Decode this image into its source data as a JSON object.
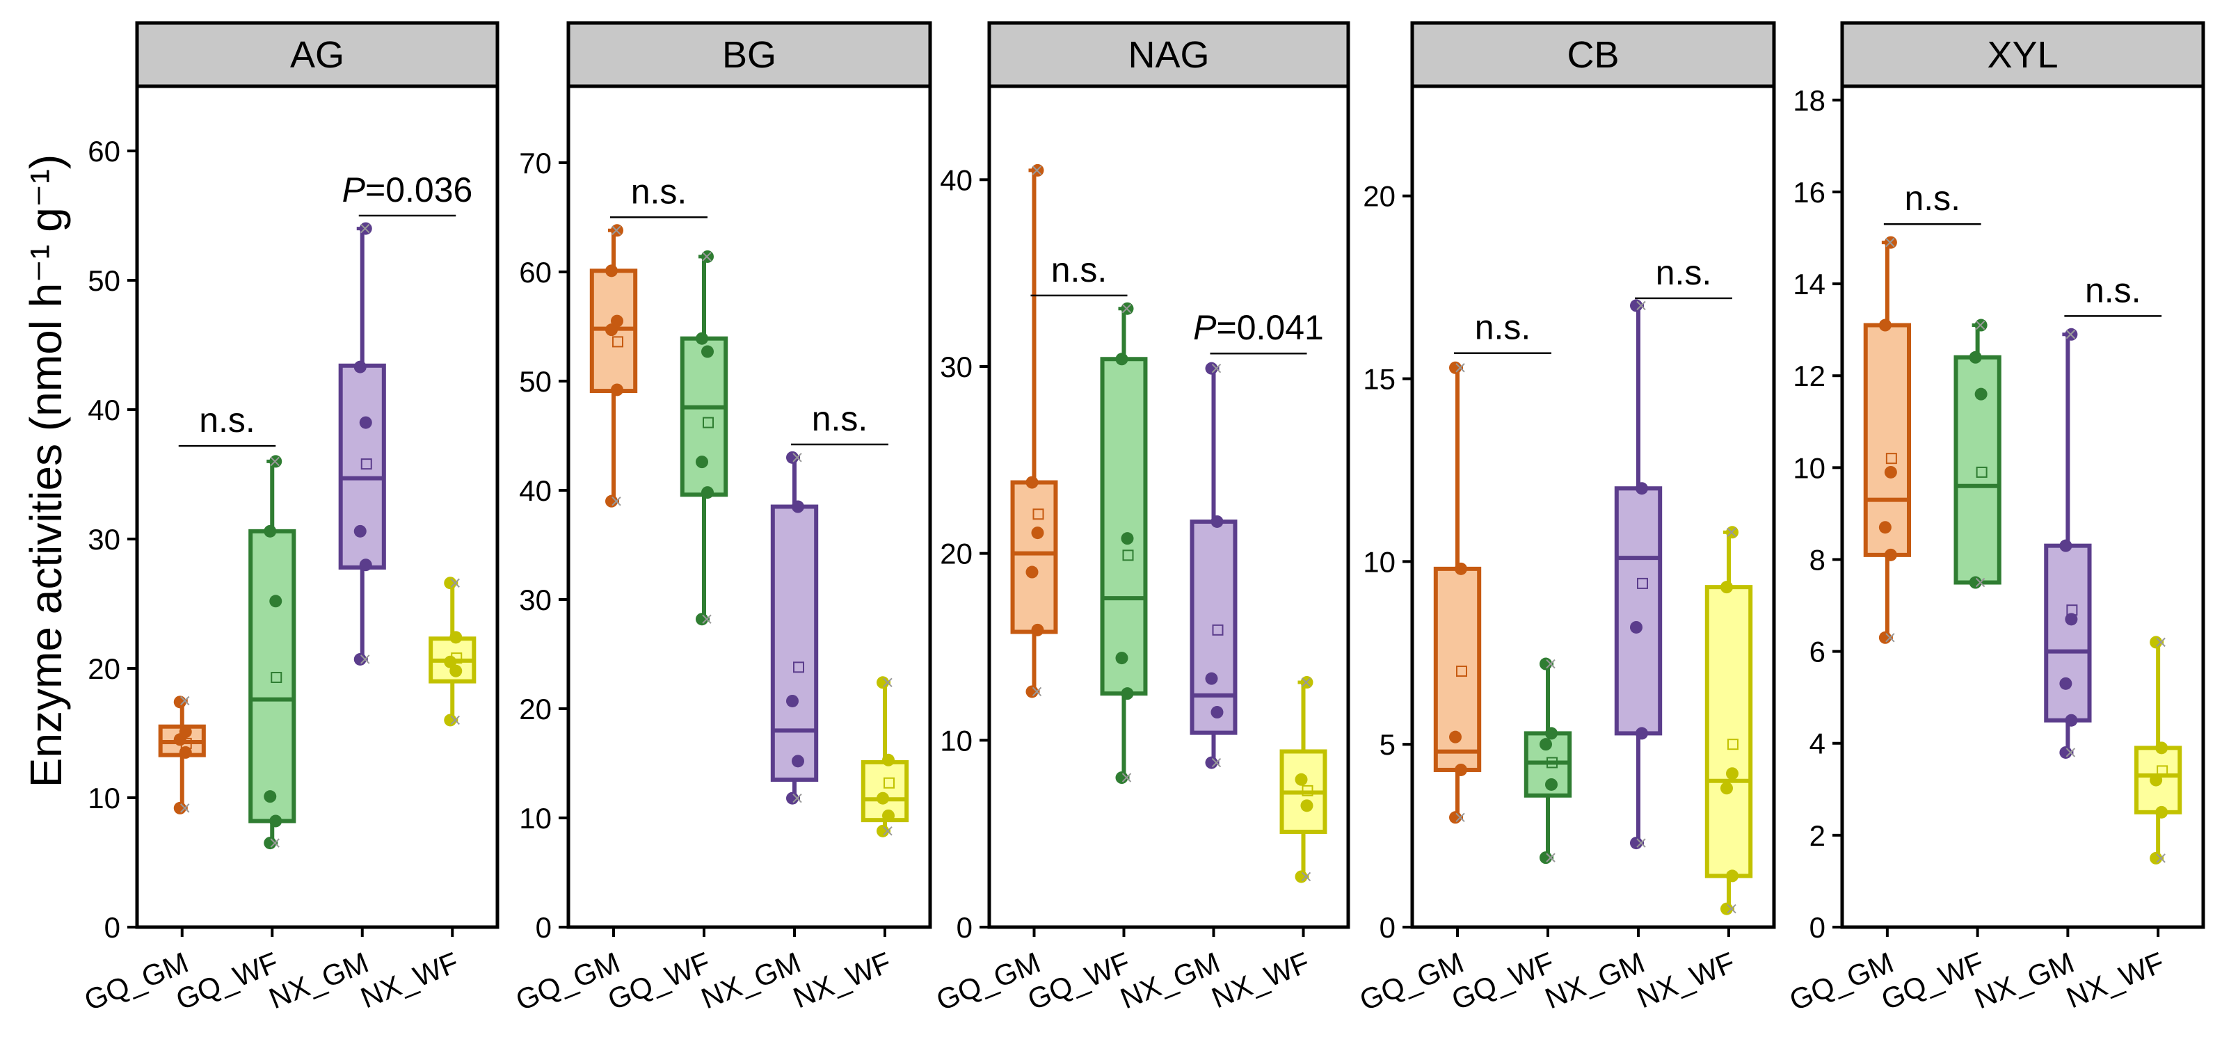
{
  "figure": {
    "ylabel": "Enzyme activities (nmol h⁻¹ g⁻¹)"
  },
  "colors": {
    "GQ_GM": {
      "stroke": "#c65a11",
      "fill": "#f8c69c"
    },
    "GQ_WF": {
      "stroke": "#2f7d32",
      "fill": "#9fdca0"
    },
    "NX_GM": {
      "stroke": "#5b3d8c",
      "fill": "#c4b2dc"
    },
    "NX_WF": {
      "stroke": "#c2c200",
      "fill": "#feff9c"
    }
  },
  "chart_data": [
    {
      "type": "box",
      "title": "AG",
      "categories": [
        "GQ_GM",
        "GQ_WF",
        "NX_GM",
        "NX_WF"
      ],
      "ylim": [
        0,
        65
      ],
      "yticks": [
        0,
        10,
        20,
        30,
        40,
        50,
        60
      ],
      "boxes": [
        {
          "min": 9.2,
          "q1": 13.3,
          "median": 14.3,
          "q3": 15.5,
          "max": 17.5,
          "mean": 14.2,
          "points": [
            9.2,
            13.5,
            14.5,
            15.1,
            17.4
          ]
        },
        {
          "min": 6.5,
          "q1": 8.2,
          "median": 17.6,
          "q3": 30.6,
          "max": 36.0,
          "mean": 19.3,
          "points": [
            6.5,
            8.2,
            10.1,
            25.2,
            30.6,
            36.0
          ]
        },
        {
          "min": 20.7,
          "q1": 27.8,
          "median": 34.7,
          "q3": 43.4,
          "max": 54.0,
          "mean": 35.8,
          "points": [
            20.7,
            28.0,
            30.6,
            39.0,
            43.3,
            54.0
          ]
        },
        {
          "min": 16.0,
          "q1": 19.0,
          "median": 20.6,
          "q3": 22.3,
          "max": 26.6,
          "mean": 20.8,
          "points": [
            16.0,
            19.8,
            20.5,
            22.4,
            26.6
          ]
        }
      ],
      "annotations": [
        {
          "text": "n.s.",
          "between": [
            "GQ_GM",
            "GQ_WF"
          ],
          "y": 37.2,
          "italic_p": false
        },
        {
          "text": "=0.036",
          "between": [
            "NX_GM",
            "NX_WF"
          ],
          "y": 55.0,
          "italic_p": true
        }
      ]
    },
    {
      "type": "box",
      "title": "BG",
      "categories": [
        "GQ_GM",
        "GQ_WF",
        "NX_GM",
        "NX_WF"
      ],
      "ylim": [
        0,
        77
      ],
      "yticks": [
        0,
        10,
        20,
        30,
        40,
        50,
        60,
        70
      ],
      "boxes": [
        {
          "min": 39.0,
          "q1": 49.1,
          "median": 54.8,
          "q3": 60.1,
          "max": 63.8,
          "mean": 53.6,
          "points": [
            39.0,
            49.2,
            54.7,
            55.5,
            60.1,
            63.8
          ]
        },
        {
          "min": 28.2,
          "q1": 39.6,
          "median": 47.6,
          "q3": 53.9,
          "max": 61.4,
          "mean": 46.2,
          "points": [
            28.2,
            39.8,
            42.6,
            52.7,
            53.9,
            61.4
          ]
        },
        {
          "min": 11.8,
          "q1": 13.5,
          "median": 18.0,
          "q3": 38.5,
          "max": 43.0,
          "mean": 23.8,
          "points": [
            11.8,
            15.2,
            20.7,
            38.5,
            43.0
          ]
        },
        {
          "min": 8.8,
          "q1": 9.8,
          "median": 11.7,
          "q3": 15.1,
          "max": 22.4,
          "mean": 13.2,
          "points": [
            8.8,
            10.2,
            11.8,
            15.3,
            22.4
          ]
        }
      ],
      "annotations": [
        {
          "text": "n.s.",
          "between": [
            "GQ_GM",
            "GQ_WF"
          ],
          "y": 65.0,
          "italic_p": false
        },
        {
          "text": "n.s.",
          "between": [
            "NX_GM",
            "NX_WF"
          ],
          "y": 44.2,
          "italic_p": false
        }
      ]
    },
    {
      "type": "box",
      "title": "NAG",
      "categories": [
        "GQ_GM",
        "GQ_WF",
        "NX_GM",
        "NX_WF"
      ],
      "ylim": [
        0,
        45
      ],
      "yticks": [
        0,
        10,
        20,
        30,
        40
      ],
      "boxes": [
        {
          "min": 12.6,
          "q1": 15.8,
          "median": 20.0,
          "q3": 23.8,
          "max": 40.5,
          "mean": 22.1,
          "points": [
            12.6,
            15.9,
            19.0,
            21.1,
            23.8,
            40.5
          ]
        },
        {
          "min": 8.0,
          "q1": 12.5,
          "median": 17.6,
          "q3": 30.4,
          "max": 33.1,
          "mean": 19.9,
          "points": [
            8.0,
            12.5,
            14.4,
            20.8,
            30.4,
            33.1
          ]
        },
        {
          "min": 8.8,
          "q1": 10.4,
          "median": 12.4,
          "q3": 21.7,
          "max": 29.9,
          "mean": 15.9,
          "points": [
            8.8,
            11.5,
            13.3,
            21.7,
            29.9
          ]
        },
        {
          "min": 2.7,
          "q1": 5.1,
          "median": 7.2,
          "q3": 9.4,
          "max": 13.1,
          "mean": 7.3,
          "points": [
            2.7,
            6.5,
            7.9,
            13.1
          ]
        }
      ],
      "annotations": [
        {
          "text": "n.s.",
          "between": [
            "GQ_GM",
            "GQ_WF"
          ],
          "y": 33.8,
          "italic_p": false
        },
        {
          "text": "=0.041",
          "between": [
            "NX_GM",
            "NX_WF"
          ],
          "y": 30.7,
          "italic_p": true
        }
      ]
    },
    {
      "type": "box",
      "title": "CB",
      "categories": [
        "GQ_GM",
        "GQ_WF",
        "NX_GM",
        "NX_WF"
      ],
      "ylim": [
        0,
        23
      ],
      "yticks": [
        0,
        5,
        10,
        15,
        20
      ],
      "boxes": [
        {
          "min": 3.0,
          "q1": 4.3,
          "median": 4.8,
          "q3": 9.8,
          "max": 15.3,
          "mean": 7.0,
          "points": [
            3.0,
            4.3,
            5.2,
            9.8,
            15.3
          ]
        },
        {
          "min": 1.9,
          "q1": 3.6,
          "median": 4.5,
          "q3": 5.3,
          "max": 7.2,
          "mean": 4.5,
          "points": [
            1.9,
            3.9,
            5.0,
            5.3,
            7.2
          ]
        },
        {
          "min": 2.3,
          "q1": 5.3,
          "median": 10.1,
          "q3": 12.0,
          "max": 17.0,
          "mean": 9.4,
          "points": [
            2.3,
            5.3,
            8.2,
            12.0,
            17.0
          ]
        },
        {
          "min": 0.5,
          "q1": 1.4,
          "median": 4.0,
          "q3": 9.3,
          "max": 10.8,
          "mean": 5.0,
          "points": [
            0.5,
            1.4,
            3.8,
            4.2,
            9.3,
            10.8
          ]
        }
      ],
      "annotations": [
        {
          "text": "n.s.",
          "between": [
            "GQ_GM",
            "GQ_WF"
          ],
          "y": 15.7,
          "italic_p": false
        },
        {
          "text": "n.s.",
          "between": [
            "NX_GM",
            "NX_WF"
          ],
          "y": 17.2,
          "italic_p": false
        }
      ]
    },
    {
      "type": "box",
      "title": "XYL",
      "categories": [
        "GQ_GM",
        "GQ_WF",
        "NX_GM",
        "NX_WF"
      ],
      "ylim": [
        0,
        18.3
      ],
      "yticks": [
        0,
        2,
        4,
        6,
        8,
        10,
        12,
        14,
        16,
        18
      ],
      "boxes": [
        {
          "min": 6.3,
          "q1": 8.1,
          "median": 9.3,
          "q3": 13.1,
          "max": 14.9,
          "mean": 10.2,
          "points": [
            6.3,
            8.1,
            8.7,
            9.9,
            13.1,
            14.9
          ]
        },
        {
          "min": 7.5,
          "q1": 7.5,
          "median": 9.6,
          "q3": 12.4,
          "max": 13.1,
          "mean": 9.9,
          "points": [
            7.5,
            11.6,
            12.4,
            13.1
          ]
        },
        {
          "min": 3.8,
          "q1": 4.5,
          "median": 6.0,
          "q3": 8.3,
          "max": 12.9,
          "mean": 6.9,
          "points": [
            3.8,
            4.5,
            5.3,
            6.7,
            8.3,
            12.9
          ]
        },
        {
          "min": 1.5,
          "q1": 2.5,
          "median": 3.3,
          "q3": 3.9,
          "max": 6.2,
          "mean": 3.4,
          "points": [
            1.5,
            2.5,
            3.2,
            3.9,
            6.2
          ]
        }
      ],
      "annotations": [
        {
          "text": "n.s.",
          "between": [
            "GQ_GM",
            "GQ_WF"
          ],
          "y": 15.3,
          "italic_p": false
        },
        {
          "text": "n.s.",
          "between": [
            "NX_GM",
            "NX_WF"
          ],
          "y": 13.3,
          "italic_p": false
        }
      ]
    }
  ]
}
